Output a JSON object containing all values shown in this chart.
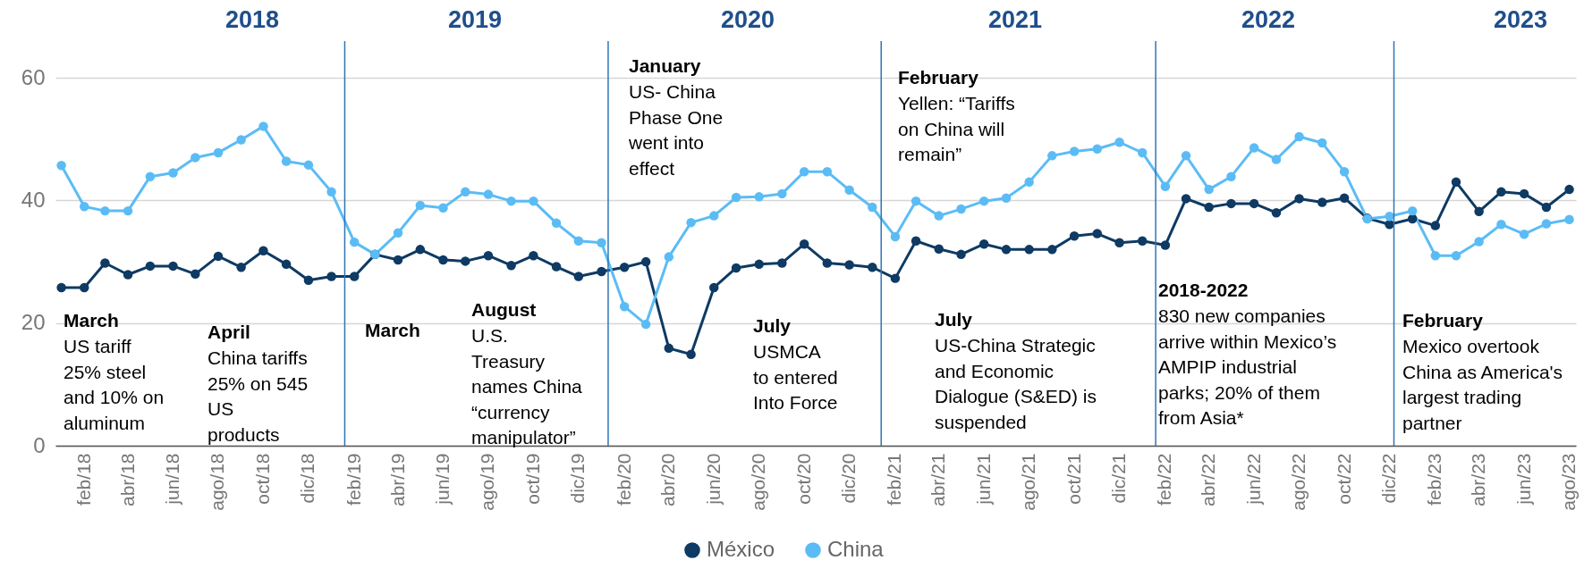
{
  "chart_data": {
    "type": "line",
    "x": [
      "2018-01",
      "2018-02",
      "2018-03",
      "2018-04",
      "2018-05",
      "2018-06",
      "2018-07",
      "2018-08",
      "2018-09",
      "2018-10",
      "2018-11",
      "2018-12",
      "2019-01",
      "2019-02",
      "2019-03",
      "2019-04",
      "2019-05",
      "2019-06",
      "2019-07",
      "2019-08",
      "2019-09",
      "2019-10",
      "2019-11",
      "2019-12",
      "2020-01",
      "2020-02",
      "2020-03",
      "2020-04",
      "2020-05",
      "2020-06",
      "2020-07",
      "2020-08",
      "2020-09",
      "2020-10",
      "2020-11",
      "2020-12",
      "2021-01",
      "2021-02",
      "2021-03",
      "2021-04",
      "2021-05",
      "2021-06",
      "2021-07",
      "2021-08",
      "2021-09",
      "2021-10",
      "2021-11",
      "2021-12",
      "2022-01",
      "2022-02",
      "2022-03",
      "2022-04",
      "2022-05",
      "2022-06",
      "2022-07",
      "2022-08",
      "2022-09",
      "2022-10",
      "2022-11",
      "2022-12",
      "2023-01",
      "2023-02",
      "2023-03",
      "2023-04",
      "2023-05",
      "2023-06",
      "2023-07",
      "2023-08"
    ],
    "xlim": [
      "2017-12-24",
      "2023-08-10"
    ],
    "xticks": [
      {
        "value": "2018-02",
        "label": "feb/18"
      },
      {
        "value": "2018-04",
        "label": "abr/18"
      },
      {
        "value": "2018-06",
        "label": "jun/18"
      },
      {
        "value": "2018-08",
        "label": "ago/18"
      },
      {
        "value": "2018-10",
        "label": "oct/18"
      },
      {
        "value": "2018-12",
        "label": "dic/18"
      },
      {
        "value": "2019-02",
        "label": "feb/19"
      },
      {
        "value": "2019-04",
        "label": "abr/19"
      },
      {
        "value": "2019-06",
        "label": "jun/19"
      },
      {
        "value": "2019-08",
        "label": "ago/19"
      },
      {
        "value": "2019-10",
        "label": "oct/19"
      },
      {
        "value": "2019-12",
        "label": "dic/19"
      },
      {
        "value": "2020-02",
        "label": "feb/20"
      },
      {
        "value": "2020-04",
        "label": "abr/20"
      },
      {
        "value": "2020-06",
        "label": "jun/20"
      },
      {
        "value": "2020-08",
        "label": "ago/20"
      },
      {
        "value": "2020-10",
        "label": "oct/20"
      },
      {
        "value": "2020-12",
        "label": "dic/20"
      },
      {
        "value": "2021-02",
        "label": "feb/21"
      },
      {
        "value": "2021-04",
        "label": "abr/21"
      },
      {
        "value": "2021-06",
        "label": "jun/21"
      },
      {
        "value": "2021-08",
        "label": "ago/21"
      },
      {
        "value": "2021-10",
        "label": "oct/21"
      },
      {
        "value": "2021-12",
        "label": "dic/21"
      },
      {
        "value": "2022-02",
        "label": "feb/22"
      },
      {
        "value": "2022-04",
        "label": "abr/22"
      },
      {
        "value": "2022-06",
        "label": "jun/22"
      },
      {
        "value": "2022-08",
        "label": "ago/22"
      },
      {
        "value": "2022-10",
        "label": "oct/22"
      },
      {
        "value": "2022-12",
        "label": "dic/22"
      },
      {
        "value": "2023-02",
        "label": "feb/23"
      },
      {
        "value": "2023-04",
        "label": "abr/23"
      },
      {
        "value": "2023-06",
        "label": "jun/23"
      },
      {
        "value": "2023-08",
        "label": "ago/23"
      }
    ],
    "ylim": [
      0,
      66
    ],
    "yticks": [
      0,
      20,
      40,
      60
    ],
    "grid": "y",
    "legend": "bottom",
    "marker": "circle",
    "line_style": "solid",
    "series": [
      {
        "name": "México",
        "color": "#0e3a63",
        "values": [
          25.8,
          25.8,
          29.8,
          27.9,
          29.3,
          29.3,
          28.0,
          30.9,
          29.1,
          31.8,
          29.6,
          27.0,
          27.6,
          27.6,
          31.2,
          30.3,
          32.0,
          30.3,
          30.1,
          31.0,
          29.4,
          31.0,
          29.2,
          27.6,
          28.4,
          29.1,
          30.0,
          15.9,
          14.9,
          25.8,
          29.0,
          29.6,
          29.8,
          32.9,
          29.8,
          29.5,
          29.1,
          27.3,
          33.4,
          32.1,
          31.2,
          32.9,
          32.0,
          32.0,
          32.0,
          34.2,
          34.6,
          33.1,
          33.4,
          32.7,
          40.3,
          38.9,
          39.5,
          39.5,
          38.0,
          40.3,
          39.7,
          40.4,
          37.1,
          36.1,
          37.0,
          35.9,
          43.0,
          38.2,
          41.4,
          41.1,
          38.9,
          41.8
        ]
      },
      {
        "name": "China",
        "color": "#5bbcf5",
        "values": [
          45.7,
          39.0,
          38.3,
          38.3,
          43.9,
          44.5,
          47.0,
          47.8,
          49.9,
          52.1,
          46.4,
          45.8,
          41.4,
          33.2,
          31.2,
          34.7,
          39.2,
          38.8,
          41.4,
          41.0,
          39.9,
          39.9,
          36.3,
          33.4,
          33.1,
          22.7,
          19.8,
          30.8,
          36.4,
          37.5,
          40.5,
          40.6,
          41.1,
          44.7,
          44.7,
          41.7,
          38.9,
          34.1,
          39.9,
          37.5,
          38.6,
          39.9,
          40.4,
          43.0,
          47.3,
          48.0,
          48.4,
          49.5,
          47.8,
          42.3,
          47.3,
          41.8,
          43.9,
          48.6,
          46.7,
          50.4,
          49.4,
          44.7,
          37.0,
          37.4,
          38.3,
          31.0,
          31.0,
          33.3,
          36.1,
          34.5,
          36.2,
          36.9
        ]
      }
    ],
    "ref_lines": [
      {
        "axis": "x",
        "value": "2019-01-19",
        "color": "#2e75b6"
      },
      {
        "axis": "x",
        "value": "2020-01-10",
        "color": "#2e75b6"
      },
      {
        "axis": "x",
        "value": "2021-01-13",
        "color": "#2e75b6"
      },
      {
        "axis": "x",
        "value": "2022-01-19",
        "color": "#2e75b6"
      },
      {
        "axis": "x",
        "value": "2022-12-07",
        "color": "#2e75b6"
      }
    ],
    "annotations": [
      "2018",
      "2019",
      "2020",
      "2021",
      "2022",
      "2023",
      "March\nUS tariff\n25% steel\nand 10% on\naluminum",
      "April\nChina tariffs\n25% on 545\nUS\nproducts",
      "March",
      "August\nU.S.\nTreasury\nnames China\n“currency\nmanipulator”",
      "January\nUS- China\nPhase One\nwent into\neffect",
      "July\nUSMCA\nto entered\nInto Force",
      "February\nYellen: “Tariffs\non China will\nremain”",
      "July\nUS-China Strategic\nand Economic\nDialogue (S&ED) is\nsuspended",
      "2018-2022\n830 new companies\narrive within Mexico’s\nAMPIP industrial\nparks; 20% of them\nfrom Asia*",
      "February\nMexico overtook\nChina as America's\nlargest trading\npartner"
    ]
  }
}
